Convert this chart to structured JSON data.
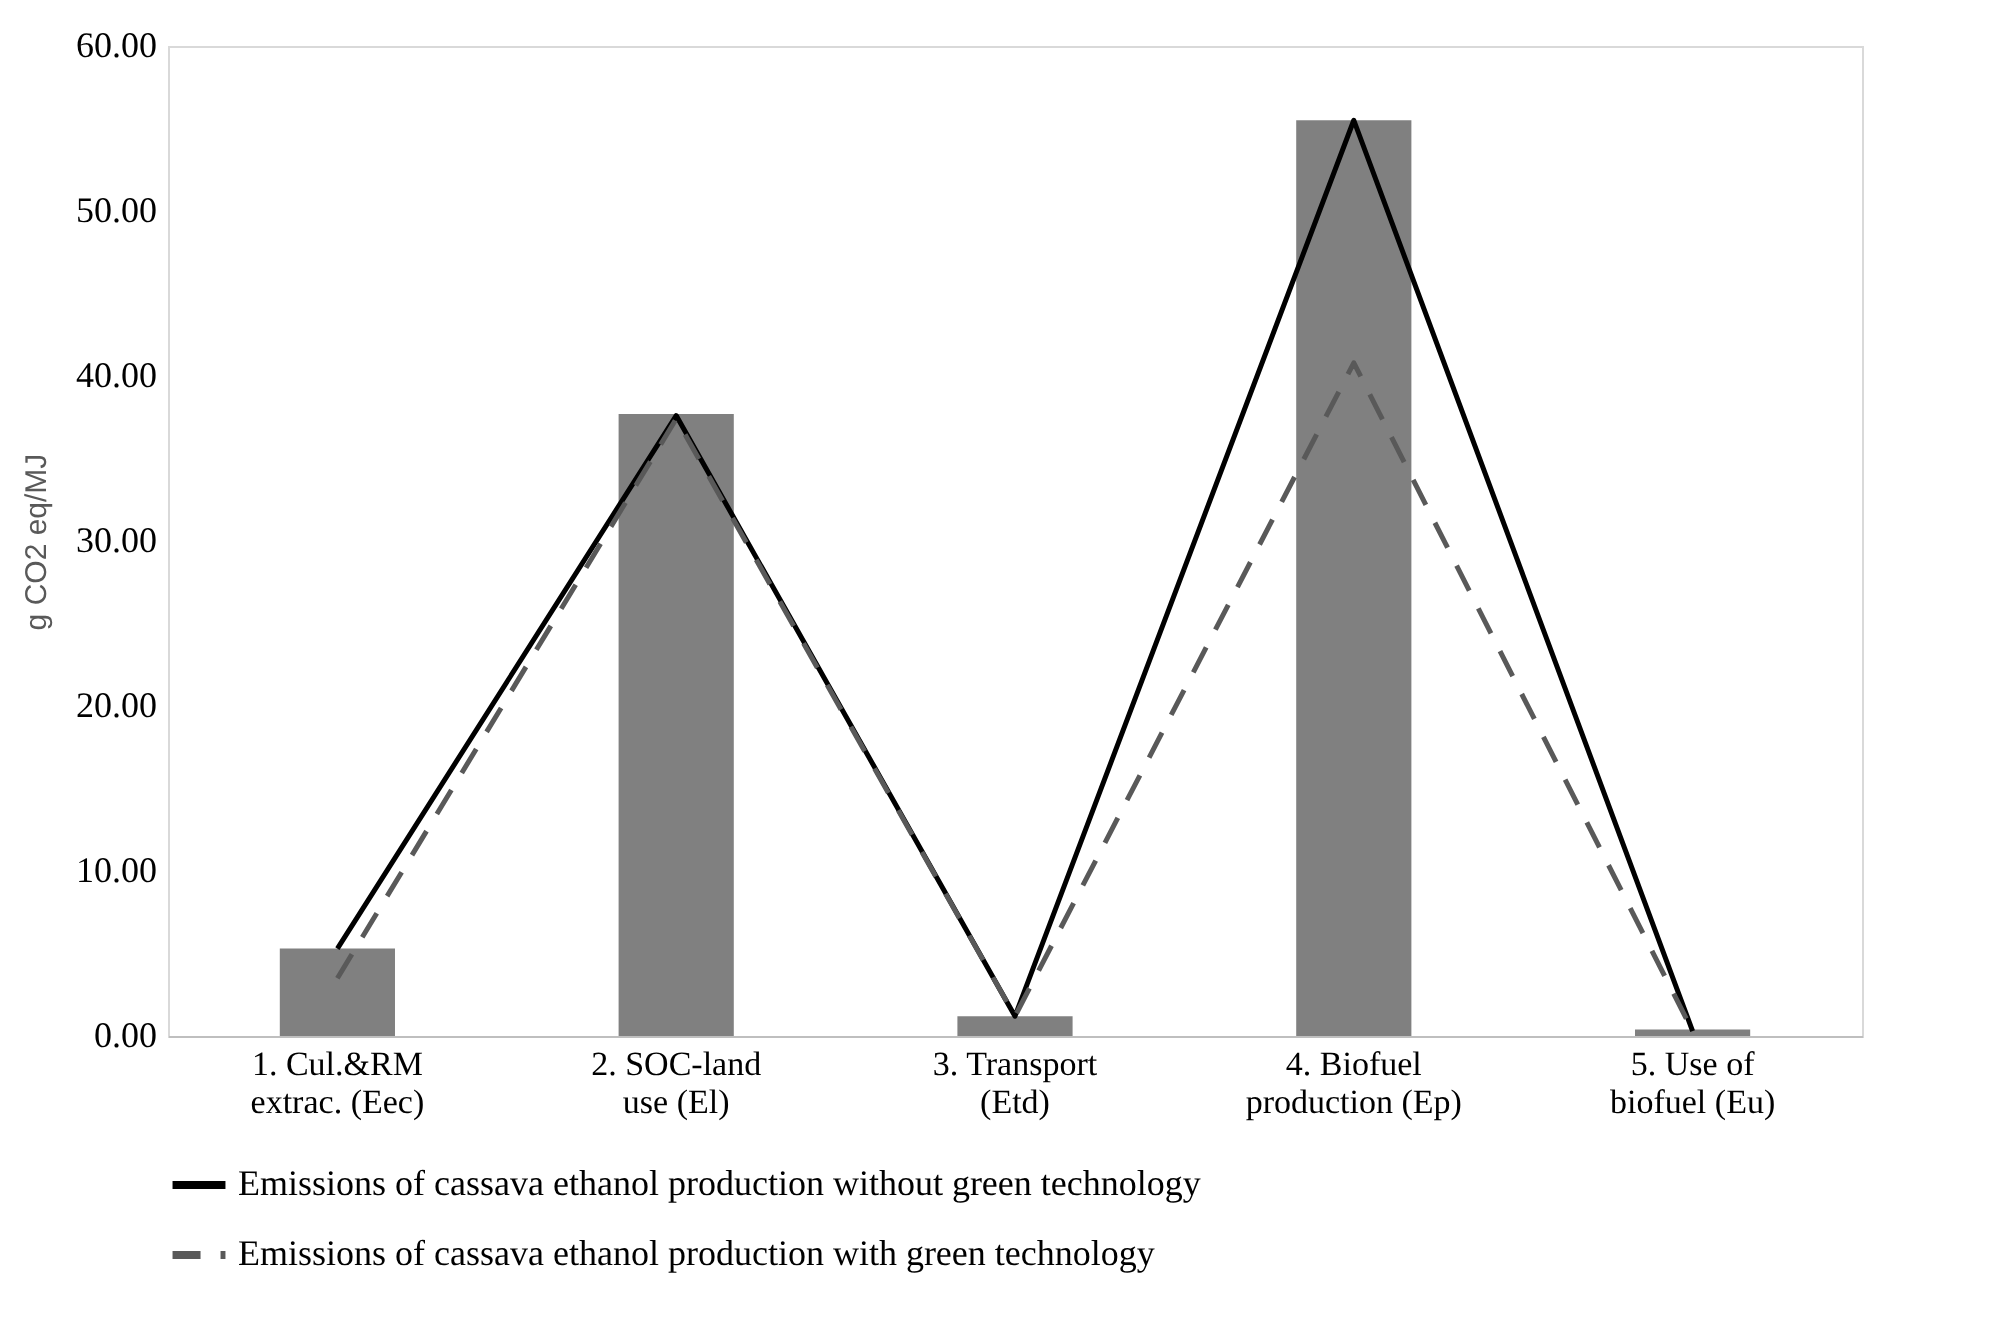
{
  "chart_data": {
    "type": "bar",
    "ylabel": "g CO2 eq/MJ",
    "categories": [
      "1. Cul.&RM\nextrac. (Eec)",
      "2. SOC-land\nuse (El)",
      "3. Transport\n(Etd)",
      "4. Biofuel\nproduction (Ep)",
      "5. Use of\nbiofuel (Eu)"
    ],
    "series": [
      {
        "color": "#808080",
        "values": [
          5.3,
          37.7,
          1.2,
          55.5,
          0.4
        ]
      },
      {
        "type": "line",
        "name": "Emissions of cassava ethanol production without green technology",
        "color": "#000000",
        "line_style": "solid",
        "values": [
          5.3,
          37.6,
          1.2,
          55.5,
          0.3
        ]
      },
      {
        "type": "line",
        "name": "Emissions of cassava ethanol production with green technology",
        "color": "#595959",
        "line_style": "dashed",
        "values": [
          3.5,
          37.4,
          1.2,
          40.8,
          0.3
        ]
      }
    ],
    "ylim": [
      0,
      60
    ],
    "yticks": [
      {
        "value": 0,
        "label": "0.00"
      },
      {
        "value": 10,
        "label": "10.00"
      },
      {
        "value": 20,
        "label": "20.00"
      },
      {
        "value": 30,
        "label": "30.00"
      },
      {
        "value": 40,
        "label": "40.00"
      },
      {
        "value": 50,
        "label": "50.00"
      },
      {
        "value": 60,
        "label": "60.00"
      }
    ],
    "grid": false,
    "legend": "bottom",
    "marker": "none"
  }
}
